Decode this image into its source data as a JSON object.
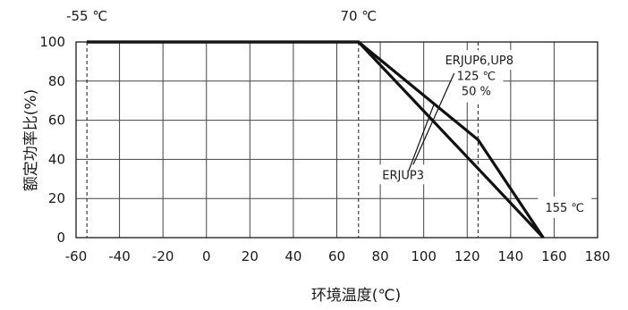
{
  "chart_data": {
    "type": "line",
    "title": "",
    "xlabel": "环境温度(℃)",
    "ylabel": "额定功率比(%)",
    "xlim": [
      -60,
      180
    ],
    "ylim": [
      0,
      100
    ],
    "xticks": [
      -60,
      -40,
      -20,
      0,
      20,
      40,
      60,
      80,
      100,
      120,
      140,
      160,
      180
    ],
    "yticks": [
      0,
      20,
      40,
      60,
      80,
      100
    ],
    "grid": true,
    "series": [
      {
        "name": "ERJUP6,UP8",
        "x": [
          -55,
          70,
          125,
          155
        ],
        "y": [
          100,
          100,
          50,
          0
        ]
      },
      {
        "name": "ERJUP3",
        "x": [
          -55,
          70,
          155
        ],
        "y": [
          100,
          100,
          0
        ]
      }
    ],
    "reference_lines": [
      {
        "x": -55,
        "label": "-55 ℃"
      },
      {
        "x": 70,
        "label": "70 ℃"
      },
      {
        "x": 125,
        "label": ""
      }
    ],
    "annotations": [
      {
        "lines": [
          "125 ℃",
          "50 %"
        ],
        "x": 125,
        "y": 50
      },
      {
        "lines": [
          "155 ℃"
        ],
        "x": 155,
        "y": 0
      }
    ]
  }
}
